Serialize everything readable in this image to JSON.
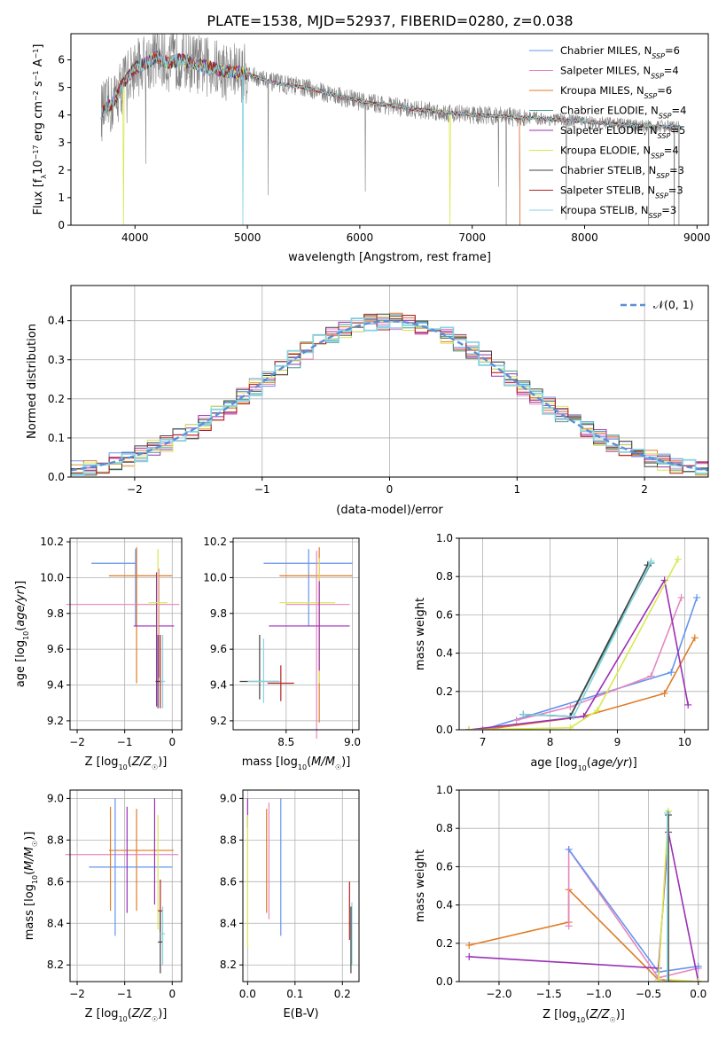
{
  "chart_data": [
    {
      "type": "line",
      "title": "PLATE=1538, MJD=52937, FIBERID=0280, z=0.038",
      "xlabel": "wavelength [Angstrom, rest frame]",
      "ylabel": "Flux [f_λ10^-17 erg cm^-2 s^-1 A^-1]",
      "xlim": [
        3430,
        9100
      ],
      "ylim": [
        0,
        6.95
      ],
      "xticks": [
        "4000",
        "5000",
        "6000",
        "7000",
        "8000",
        "9000"
      ],
      "yticks": [
        "0",
        "1",
        "2",
        "3",
        "4",
        "5",
        "6"
      ],
      "legend": "top-right",
      "data_color": "#808080",
      "series": [
        {
          "name": "Chabrier MILES, N_SSP=6",
          "color": "#6495ed"
        },
        {
          "name": "Salpeter MILES, N_SSP=4",
          "color": "#e587c0"
        },
        {
          "name": "Kroupa MILES, N_SSP=6",
          "color": "#e07b24"
        },
        {
          "name": "Chabrier ELODIE, N_SSP=4",
          "color": "#3e9e8a"
        },
        {
          "name": "Salpeter ELODIE, N_SSP=5",
          "color": "#9b2fb5"
        },
        {
          "name": "Kroupa ELODIE, N_SSP=4",
          "color": "#d9e84f"
        },
        {
          "name": "Chabrier STELIB, N_SSP=3",
          "color": "#404040"
        },
        {
          "name": "Salpeter STELIB, N_SSP=3",
          "color": "#b22222"
        },
        {
          "name": "Kroupa STELIB, N_SSP=3",
          "color": "#87d3e0"
        }
      ],
      "continuum": {
        "x": [
          3700,
          3800,
          3900,
          4000,
          4100,
          4200,
          4300,
          4400,
          4600,
          4800,
          5000,
          5200,
          5500,
          6000,
          6500,
          7000,
          7300,
          7420,
          7500,
          8000,
          8500,
          8850
        ],
        "y": [
          4.1,
          4.4,
          5.2,
          5.7,
          5.9,
          6.1,
          5.9,
          6.0,
          5.8,
          5.6,
          5.5,
          5.2,
          5.0,
          4.5,
          4.2,
          4.0,
          3.95,
          3.9,
          3.9,
          3.75,
          3.6,
          3.55
        ]
      }
    },
    {
      "type": "step",
      "xlabel": "(data-model)/error",
      "ylabel": "Normed distribution",
      "xlim": [
        -2.5,
        2.5
      ],
      "ylim": [
        0,
        0.49
      ],
      "xticks": [
        "−2",
        "−1",
        "0",
        "1",
        "2"
      ],
      "yticks": [
        "0.0",
        "0.1",
        "0.2",
        "0.3",
        "0.4"
      ],
      "legend_label": "𝒩(0, 1)",
      "legend_color": "#5a8fd6",
      "bin_width": 0.1
    },
    {
      "type": "errorbar",
      "xlabel": "Z [log10(Z/Z☉)]",
      "ylabel": "age  [log10(age/yr)]",
      "xlim": [
        -2.15,
        0.2
      ],
      "ylim": [
        9.15,
        10.22
      ],
      "xticks": [
        "−2",
        "−1",
        "0"
      ],
      "yticks": [
        "9.2",
        "9.4",
        "9.6",
        "9.8",
        "10.0",
        "10.2"
      ],
      "points": [
        {
          "series": "Chabrier MILES",
          "x": -0.77,
          "xerr": [
            0.93,
            0.0
          ],
          "y": 10.08,
          "yerr": [
            0.35,
            0.08
          ]
        },
        {
          "series": "Salpeter MILES",
          "x": -0.28,
          "xerr": [
            1.95,
            0.43
          ],
          "y": 9.85,
          "yerr": [
            0.41,
            0.2
          ]
        },
        {
          "series": "Kroupa MILES",
          "x": -0.75,
          "xerr": [
            0.58,
            0.75
          ],
          "y": 10.01,
          "yerr": [
            0.6,
            0.16
          ]
        },
        {
          "series": "Salpeter ELODIE",
          "x": -0.33,
          "xerr": [
            0.48,
            0.37
          ],
          "y": 9.73,
          "yerr": [
            0.45,
            0.3
          ]
        },
        {
          "series": "Kroupa ELODIE",
          "x": -0.3,
          "xerr": [
            0.2,
            0.2
          ],
          "y": 9.86,
          "yerr": [
            0.35,
            0.3
          ]
        },
        {
          "series": "Chabrier STELIB",
          "x": -0.3,
          "xerr": [
            0.05,
            0.05
          ],
          "y": 9.42,
          "yerr": [
            0.15,
            0.26
          ]
        },
        {
          "series": "Salpeter STELIB",
          "x": -0.25,
          "xerr": [
            0.05,
            0.05
          ],
          "y": 9.42,
          "yerr": [
            0.15,
            0.26
          ]
        },
        {
          "series": "Kroupa STELIB",
          "x": -0.2,
          "xerr": [
            0.05,
            0.05
          ],
          "y": 9.42,
          "yerr": [
            0.15,
            0.26
          ]
        }
      ]
    },
    {
      "type": "errorbar",
      "xlabel": "mass [log10(M/M☉)]",
      "xlim": [
        8.1,
        9.05
      ],
      "ylim": [
        9.15,
        10.22
      ],
      "xticks": [
        "8.5",
        "9.0"
      ],
      "yticks": [
        "9.2",
        "9.4",
        "9.6",
        "9.8",
        "10.0",
        "10.2"
      ],
      "points": [
        {
          "series": "Chabrier MILES",
          "x": 8.67,
          "xerr": [
            0.34,
            0.33
          ],
          "y": 10.08,
          "yerr": [
            0.35,
            0.08
          ]
        },
        {
          "series": "Kroupa MILES",
          "x": 8.75,
          "xerr": [
            0.3,
            0.25
          ],
          "y": 10.01,
          "yerr": [
            0.82,
            0.16
          ]
        },
        {
          "series": "Salpeter MILES",
          "x": 8.73,
          "xerr": [
            0.23,
            0.25
          ],
          "y": 9.85,
          "yerr": [
            0.75,
            0.3
          ]
        },
        {
          "series": "Kroupa ELODIE",
          "x": 8.75,
          "xerr": [
            0.3,
            0.12
          ],
          "y": 9.86,
          "yerr": [
            0.45,
            0.25
          ]
        },
        {
          "series": "Salpeter ELODIE",
          "x": 8.75,
          "xerr": [
            0.38,
            0.23
          ],
          "y": 9.73,
          "yerr": [
            0.25,
            0.25
          ]
        },
        {
          "series": "Chabrier STELIB",
          "x": 8.3,
          "xerr": [
            0.15,
            0.15
          ],
          "y": 9.42,
          "yerr": [
            0.1,
            0.26
          ]
        },
        {
          "series": "Salpeter STELIB",
          "x": 8.46,
          "xerr": [
            0.1,
            0.1
          ],
          "y": 9.41,
          "yerr": [
            0.1,
            0.1
          ]
        },
        {
          "series": "Kroupa STELIB",
          "x": 8.33,
          "xerr": [
            0.12,
            0.12
          ],
          "y": 9.42,
          "yerr": [
            0.12,
            0.24
          ]
        }
      ]
    },
    {
      "type": "line",
      "xlabel": "age  [log10(age/yr)]",
      "ylabel": "mass weight",
      "xlim": [
        6.65,
        10.35
      ],
      "ylim": [
        0,
        1
      ],
      "xticks": [
        "7",
        "8",
        "9",
        "10"
      ],
      "yticks": [
        "0.0",
        "0.2",
        "0.4",
        "0.6",
        "0.8",
        "1.0"
      ],
      "series": [
        {
          "name": "Chabrier MILES",
          "x": [
            6.8,
            7.0,
            9.8,
            10.18
          ],
          "y": [
            0.0,
            0.0,
            0.3,
            0.69
          ]
        },
        {
          "name": "Kroupa MILES",
          "x": [
            6.8,
            7.0,
            8.5,
            9.7,
            10.15
          ],
          "y": [
            0.0,
            0.0,
            0.07,
            0.19,
            0.48
          ]
        },
        {
          "name": "Salpeter MILES",
          "x": [
            7.5,
            8.3,
            9.5,
            9.95
          ],
          "y": [
            0.05,
            0.12,
            0.28,
            0.69
          ]
        },
        {
          "name": "Chabrier ELODIE",
          "x": [
            7.6,
            8.3,
            9.5
          ],
          "y": [
            0.08,
            0.07,
            0.87
          ]
        },
        {
          "name": "Salpeter ELODIE",
          "x": [
            6.8,
            8.5,
            9.7,
            10.05
          ],
          "y": [
            0.0,
            0.07,
            0.78,
            0.13
          ]
        },
        {
          "name": "Kroupa ELODIE",
          "x": [
            6.8,
            8.3,
            8.7,
            9.9
          ],
          "y": [
            0.0,
            0.01,
            0.1,
            0.89
          ]
        },
        {
          "name": "Chabrier STELIB",
          "x": [
            7.6,
            8.3,
            9.45
          ],
          "y": [
            0.08,
            0.07,
            0.86
          ]
        },
        {
          "name": "Kroupa STELIB",
          "x": [
            7.6,
            8.35,
            9.5
          ],
          "y": [
            0.08,
            0.07,
            0.88
          ]
        }
      ]
    },
    {
      "type": "errorbar",
      "xlabel": "Z [log10(Z/Z☉)]",
      "ylabel": "mass [log10(M/M☉)]",
      "xlim": [
        -2.15,
        0.2
      ],
      "ylim": [
        8.12,
        9.04
      ],
      "xticks": [
        "−2",
        "−1",
        "0"
      ],
      "yticks": [
        "8.2",
        "8.4",
        "8.6",
        "8.8",
        "9.0"
      ],
      "points": [
        {
          "series": "Kroupa MILES",
          "x": -0.75,
          "xerr": [
            0.58,
            0.78
          ],
          "y": 8.75,
          "yerr": [
            0.29,
            0.2
          ]
        },
        {
          "series": "Salpeter MILES",
          "x": -0.3,
          "xerr": [
            1.95,
            0.43
          ],
          "y": 8.73,
          "yerr": [
            0.0,
            0.0
          ]
        },
        {
          "series": "Chabrier MILES",
          "x": -0.65,
          "xerr": [
            1.1,
            0.65
          ],
          "y": 8.67,
          "yerr": [
            0.0,
            0.0
          ]
        },
        {
          "series": "Chabrier MILES v",
          "x": -1.2,
          "xerr": [
            0.0,
            0.0
          ],
          "y": 8.67,
          "yerr": [
            0.33,
            0.33
          ]
        },
        {
          "series": "Kroupa MILES v",
          "x": -1.3,
          "xerr": [
            0.0,
            0.0
          ],
          "y": 8.75,
          "yerr": [
            0.29,
            0.21
          ]
        },
        {
          "series": "Salpeter ELODIE",
          "x": -0.95,
          "xerr": [
            0.0,
            0.0
          ],
          "y": 8.7,
          "yerr": [
            0.25,
            0.26
          ]
        },
        {
          "series": "Salpeter ELODIE 2",
          "x": -0.37,
          "xerr": [
            0.0,
            0.0
          ],
          "y": 8.74,
          "yerr": [
            0.25,
            0.26
          ]
        },
        {
          "series": "Kroupa ELODIE",
          "x": -0.3,
          "xerr": [
            0.0,
            0.0
          ],
          "y": 8.67,
          "yerr": [
            0.3,
            0.25
          ]
        },
        {
          "series": "Salpeter STELIB",
          "x": -0.25,
          "xerr": [
            0.05,
            0.05
          ],
          "y": 8.46,
          "yerr": [
            0.1,
            0.15
          ]
        },
        {
          "series": "Chabrier STELIB",
          "x": -0.25,
          "xerr": [
            0.05,
            0.05
          ],
          "y": 8.31,
          "yerr": [
            0.15,
            0.15
          ]
        },
        {
          "series": "Kroupa STELIB",
          "x": -0.2,
          "xerr": [
            0.05,
            0.05
          ],
          "y": 8.35,
          "yerr": [
            0.15,
            0.13
          ]
        }
      ]
    },
    {
      "type": "errorbar",
      "xlabel": "E(B-V)",
      "xlim": [
        -0.01,
        0.235
      ],
      "ylim": [
        8.12,
        9.04
      ],
      "xticks": [
        "0.0",
        "0.1",
        "0.2"
      ],
      "yticks": [
        "8.2",
        "8.4",
        "8.6",
        "8.8",
        "9.0"
      ],
      "points": [
        {
          "series": "Salpeter ELODIE",
          "x": 0.0,
          "y": 8.93,
          "yerr": [
            0.07,
            0.07
          ]
        },
        {
          "series": "Kroupa ELODIE",
          "x": 0.0,
          "y": 8.6,
          "yerr": [
            0.32,
            0.32
          ]
        },
        {
          "series": "Kroupa MILES",
          "x": 0.04,
          "y": 8.7,
          "yerr": [
            0.25,
            0.25
          ]
        },
        {
          "series": "Salpeter MILES",
          "x": 0.045,
          "y": 8.7,
          "yerr": [
            0.28,
            0.28
          ]
        },
        {
          "series": "Chabrier MILES",
          "x": 0.07,
          "y": 8.67,
          "yerr": [
            0.33,
            0.33
          ]
        },
        {
          "series": "Salpeter STELIB",
          "x": 0.215,
          "y": 8.46,
          "yerr": [
            0.14,
            0.14
          ]
        },
        {
          "series": "Kroupa STELIB",
          "x": 0.22,
          "y": 8.35,
          "yerr": [
            0.15,
            0.15
          ]
        },
        {
          "series": "Chabrier STELIB",
          "x": 0.218,
          "y": 8.32,
          "yerr": [
            0.16,
            0.16
          ]
        }
      ]
    },
    {
      "type": "line",
      "xlabel": "Z [log10(Z/Z☉)]",
      "ylabel": "mass weight",
      "xlim": [
        -2.4,
        0.1
      ],
      "ylim": [
        0,
        1
      ],
      "xticks": [
        "−2.0",
        "−1.5",
        "−1.0",
        "−0.5",
        "0.0"
      ],
      "yticks": [
        "0.0",
        "0.2",
        "0.4",
        "0.6",
        "0.8",
        "1.0"
      ],
      "series": [
        {
          "name": "Kroupa MILES",
          "x": [
            -2.3,
            -1.3,
            -1.3,
            -0.4,
            0.0
          ],
          "y": [
            0.19,
            0.31,
            0.48,
            0.01,
            0.0
          ]
        },
        {
          "name": "Salpeter MILES",
          "x": [
            -1.3,
            -1.3,
            -0.4,
            0.0
          ],
          "y": [
            0.29,
            0.69,
            0.02,
            0.07
          ]
        },
        {
          "name": "Chabrier MILES",
          "x": [
            -1.3,
            -0.4,
            0.0
          ],
          "y": [
            0.69,
            0.05,
            0.08
          ]
        },
        {
          "name": "Salpeter ELODIE",
          "x": [
            -2.3,
            -0.4,
            -0.3,
            0.0
          ],
          "y": [
            0.13,
            0.07,
            0.78,
            0.0
          ]
        },
        {
          "name": "Kroupa ELODIE",
          "x": [
            -0.4,
            -0.3,
            -0.3,
            0.0
          ],
          "y": [
            0.01,
            0.89,
            0.01,
            0.0
          ]
        },
        {
          "name": "Chabrier STELIB",
          "x": [
            -0.3,
            -0.3
          ],
          "y": [
            0.0,
            0.87
          ]
        },
        {
          "name": "Kroupa STELIB",
          "x": [
            -0.31,
            -0.31
          ],
          "y": [
            0.0,
            0.88
          ]
        }
      ]
    }
  ]
}
